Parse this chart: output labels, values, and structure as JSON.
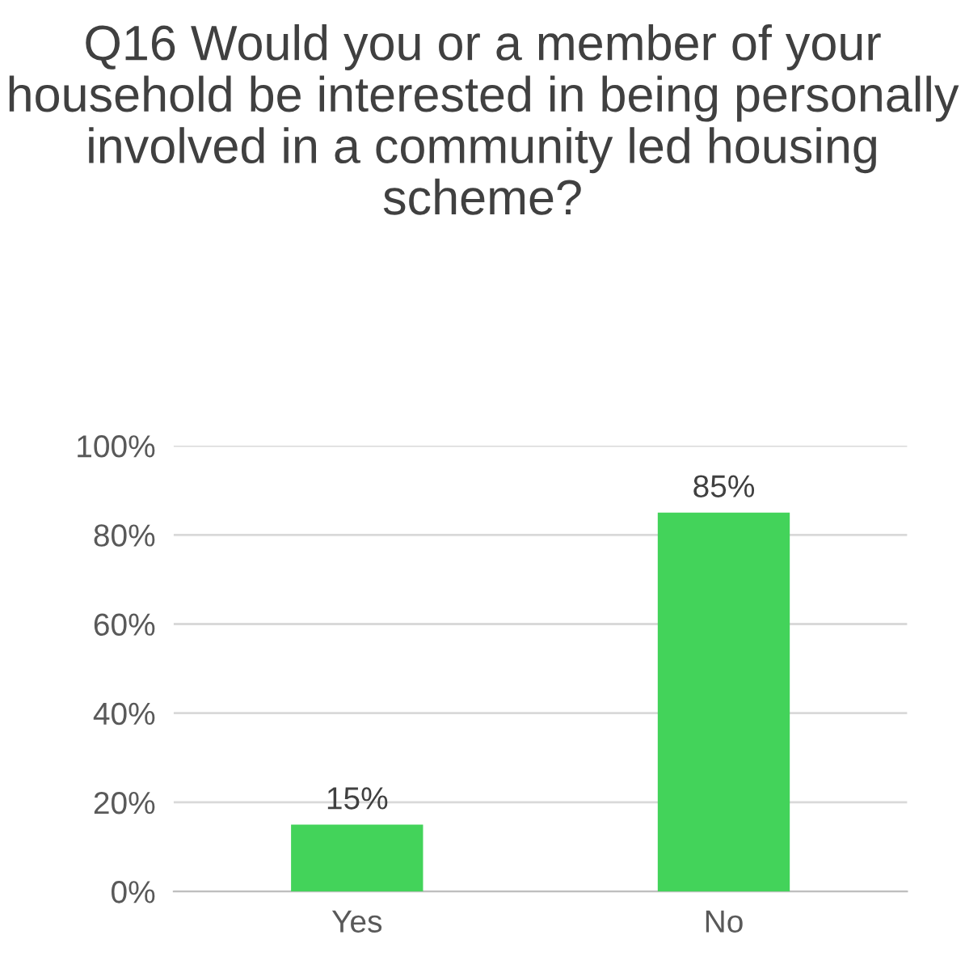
{
  "chart_data": {
    "type": "bar",
    "title": "Q16 Would you or a member of your household be interested in being personally involved in a community led housing scheme?",
    "categories": [
      "Yes",
      "No"
    ],
    "values": [
      15,
      85
    ],
    "color": "#43d35a",
    "value_labels": [
      "15%",
      "85%"
    ],
    "ylim": [
      0,
      100
    ],
    "yticks": [
      {
        "value": 0,
        "label": "0%"
      },
      {
        "value": 20,
        "label": "20%"
      },
      {
        "value": 40,
        "label": "40%"
      },
      {
        "value": 60,
        "label": "60%"
      },
      {
        "value": 80,
        "label": "80%"
      },
      {
        "value": 100,
        "label": "100%"
      }
    ],
    "grid": "y",
    "legend": false
  }
}
